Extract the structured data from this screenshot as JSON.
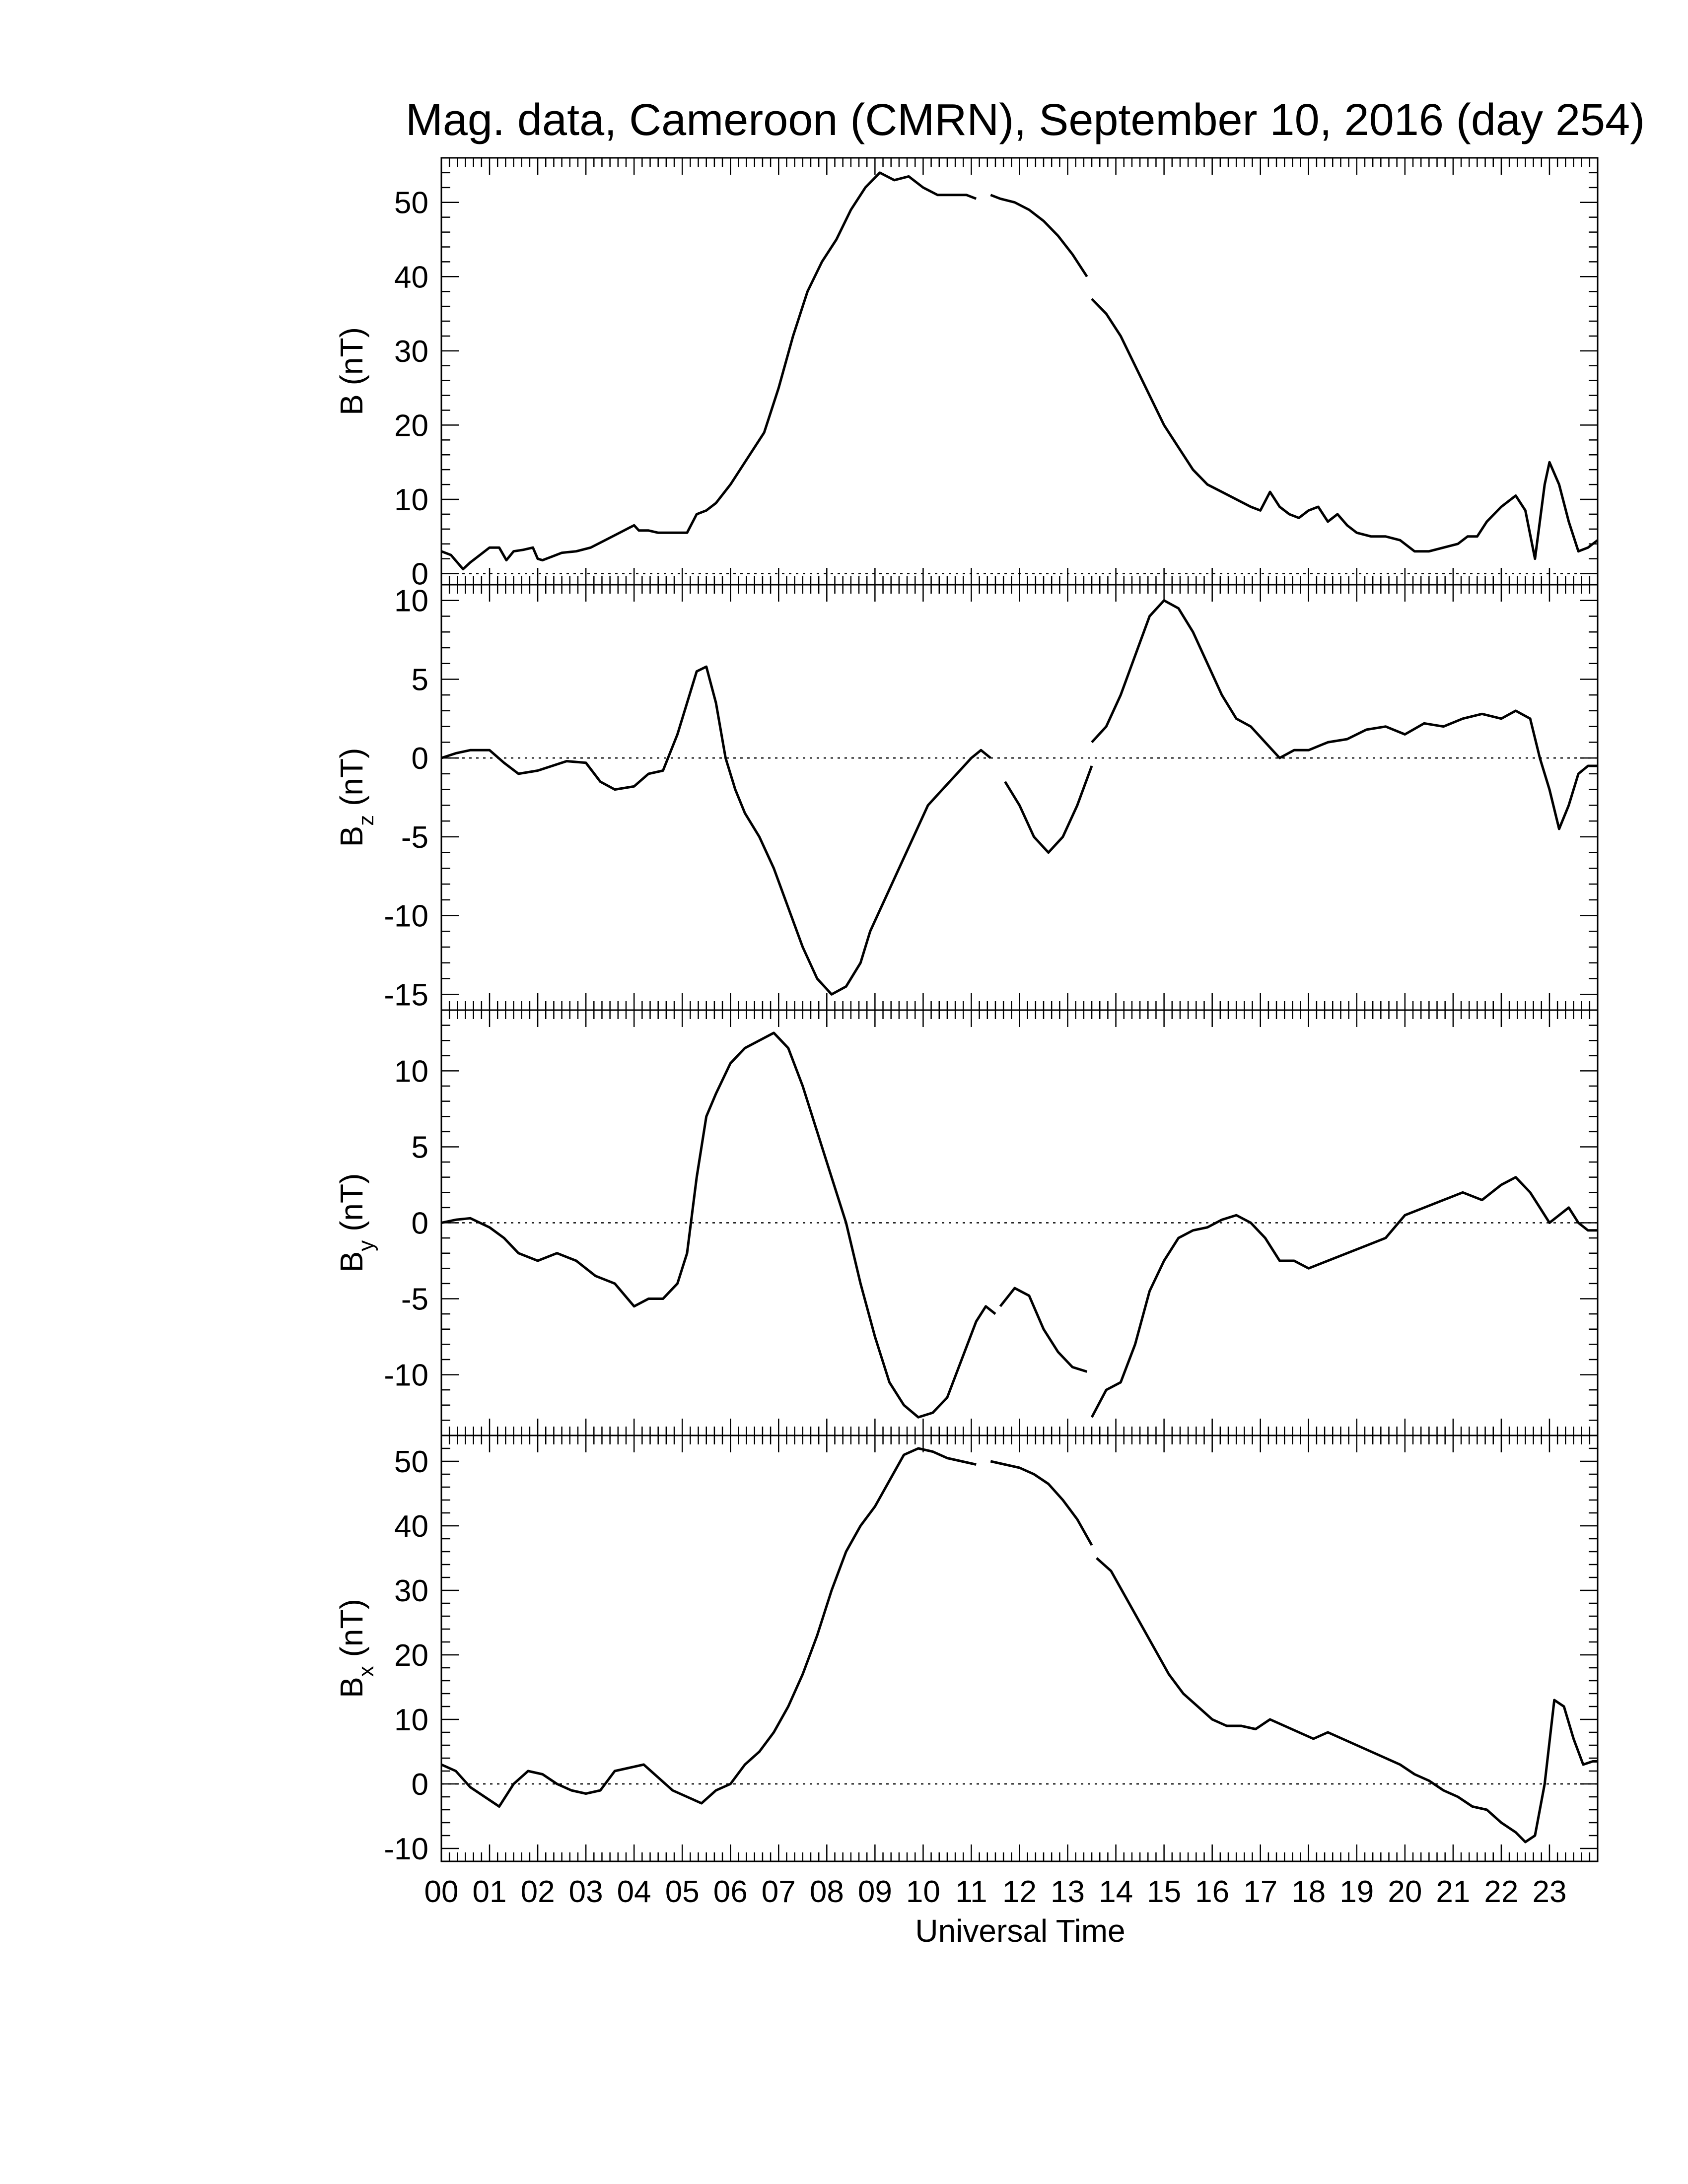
{
  "chart_data": {
    "title": "Mag. data, Cameroon (CMRN), September 10, 2016 (day 254)",
    "xlabel": "Universal Time",
    "x_ticks": [
      "00",
      "01",
      "02",
      "03",
      "04",
      "05",
      "06",
      "07",
      "08",
      "09",
      "10",
      "11",
      "12",
      "13",
      "14",
      "15",
      "16",
      "17",
      "18",
      "19",
      "20",
      "21",
      "22",
      "23"
    ],
    "xlim": [
      0,
      24
    ],
    "zero_line": "dotted",
    "panels": [
      {
        "type": "line",
        "ylabel_main": "B",
        "ylabel_sub": "",
        "ylabel_unit": " (nT)",
        "ylim": [
          -1.5,
          56
        ],
        "yticks": [
          0,
          10,
          20,
          30,
          40,
          50
        ],
        "series": [
          {
            "x": [
              0,
              0.2,
              0.45,
              0.6,
              0.8,
              1,
              1.2,
              1.35,
              1.5,
              1.7,
              1.9,
              2.0,
              2.1,
              2.3,
              2.5,
              2.8,
              3.1,
              3.4,
              3.7,
              4.0,
              4.1,
              4.3,
              4.5,
              4.8,
              5.1,
              5.3,
              5.5,
              5.7,
              6.0,
              6.3,
              6.7,
              7.0,
              7.3,
              7.6,
              7.9,
              8.2,
              8.5,
              8.8,
              9.1,
              9.4,
              9.7,
              10.0,
              10.3,
              10.6,
              10.9,
              11.1
            ],
            "y": [
              3,
              2.5,
              0.6,
              1.5,
              2.5,
              3.5,
              3.5,
              1.8,
              3,
              3.2,
              3.5,
              2,
              1.8,
              2.3,
              2.8,
              3,
              3.5,
              4.5,
              5.5,
              6.5,
              5.8,
              5.8,
              5.5,
              5.5,
              5.5,
              8,
              8.5,
              9.5,
              12,
              15,
              19,
              25,
              32,
              38,
              42,
              45,
              49,
              52,
              54,
              53,
              53.5,
              52,
              51,
              51,
              51,
              50.5
            ]
          },
          {
            "x": [
              11.4,
              11.6,
              11.9,
              12.2,
              12.5,
              12.8,
              13.1,
              13.4
            ],
            "y": [
              51,
              50.5,
              50,
              49,
              47.5,
              45.5,
              43,
              40
            ]
          },
          {
            "x": [
              13.5,
              13.8,
              14.1,
              14.4,
              14.7,
              15.0,
              15.3,
              15.6,
              15.9,
              16.2,
              16.5,
              16.8,
              17.0,
              17.2,
              17.4,
              17.6,
              17.8,
              18.0,
              18.2,
              18.4,
              18.6,
              18.8,
              19.0,
              19.3,
              19.6,
              19.9,
              20.2,
              20.5,
              20.8,
              21.1,
              21.3,
              21.5,
              21.7,
              22.0,
              22.3,
              22.5,
              22.7,
              22.9,
              23.0,
              23.2,
              23.4,
              23.6,
              23.8,
              24.0
            ],
            "y": [
              37,
              35,
              32,
              28,
              24,
              20,
              17,
              14,
              12,
              11,
              10,
              9,
              8.5,
              11,
              9,
              8,
              7.5,
              8.5,
              9,
              7,
              8,
              6.5,
              5.5,
              5,
              5,
              4.5,
              3,
              3,
              3.5,
              4,
              5,
              5,
              7,
              9,
              10.5,
              8.5,
              2,
              12,
              15,
              12,
              7,
              3,
              3.5,
              4.5
            ]
          }
        ]
      },
      {
        "type": "line",
        "ylabel_main": "B",
        "ylabel_sub": "z",
        "ylabel_unit": " (nT)",
        "ylim": [
          -16,
          11
        ],
        "yticks": [
          -15,
          -10,
          -5,
          0,
          5,
          10
        ],
        "series": [
          {
            "x": [
              0,
              0.3,
              0.6,
              1,
              1.3,
              1.6,
              2.0,
              2.3,
              2.6,
              3.0,
              3.3,
              3.6,
              4.0,
              4.3,
              4.6,
              4.9,
              5.1,
              5.3,
              5.5,
              5.7,
              5.9,
              6.1,
              6.3,
              6.6,
              6.9,
              7.2,
              7.5,
              7.8,
              8.1,
              8.4,
              8.7,
              8.9,
              9.2,
              9.5,
              9.8,
              10.1,
              10.4,
              10.7,
              11.0,
              11.2,
              11.4
            ],
            "y": [
              0,
              0.3,
              0.5,
              0.5,
              -0.3,
              -1,
              -0.8,
              -0.5,
              -0.2,
              -0.3,
              -1.5,
              -2,
              -1.8,
              -1,
              -0.8,
              1.5,
              3.5,
              5.5,
              5.8,
              3.5,
              0,
              -2,
              -3.5,
              -5,
              -7,
              -9.5,
              -12,
              -14,
              -15,
              -14.5,
              -13,
              -11,
              -9,
              -7,
              -5,
              -3,
              -2,
              -1,
              0,
              0.5,
              0
            ]
          },
          {
            "x": [
              11.7,
              12.0,
              12.3,
              12.6,
              12.9,
              13.2,
              13.5
            ],
            "y": [
              -1.5,
              -3,
              -5,
              -6,
              -5,
              -3,
              -0.5
            ]
          },
          {
            "x": [
              13.5,
              13.8,
              14.1,
              14.4,
              14.7,
              15.0,
              15.3,
              15.6,
              15.9,
              16.2,
              16.5,
              16.8,
              17.1,
              17.4,
              17.7,
              18.0,
              18.4,
              18.8,
              19.2,
              19.6,
              20.0,
              20.4,
              20.8,
              21.2,
              21.6,
              22.0,
              22.3,
              22.6,
              22.8,
              23.0,
              23.2,
              23.4,
              23.6,
              23.8,
              24.0
            ],
            "y": [
              1,
              2,
              4,
              6.5,
              9,
              10,
              9.5,
              8,
              6,
              4,
              2.5,
              2,
              1,
              0,
              0.5,
              0.5,
              1,
              1.2,
              1.8,
              2,
              1.5,
              2.2,
              2,
              2.5,
              2.8,
              2.5,
              3,
              2.5,
              0,
              -2,
              -4.5,
              -3,
              -1,
              -0.5,
              -0.5
            ]
          }
        ]
      },
      {
        "type": "line",
        "ylabel_main": "B",
        "ylabel_sub": "y",
        "ylabel_unit": " (nT)",
        "ylim": [
          -14,
          14
        ],
        "yticks": [
          -10,
          -5,
          0,
          5,
          10
        ],
        "series": [
          {
            "x": [
              0,
              0.3,
              0.6,
              1,
              1.3,
              1.6,
              2.0,
              2.4,
              2.8,
              3.2,
              3.6,
              4.0,
              4.3,
              4.6,
              4.9,
              5.1,
              5.3,
              5.5,
              5.7,
              6.0,
              6.3,
              6.6,
              6.9,
              7.2,
              7.5,
              7.8,
              8.1,
              8.4,
              8.7,
              9.0,
              9.3,
              9.6,
              9.9,
              10.2,
              10.5,
              10.8,
              11.1,
              11.3,
              11.5
            ],
            "y": [
              0,
              0.2,
              0.3,
              -0.3,
              -1,
              -2,
              -2.5,
              -2,
              -2.5,
              -3.5,
              -4,
              -5.5,
              -5,
              -5,
              -4,
              -2,
              3,
              7,
              8.5,
              10.5,
              11.5,
              12,
              12.5,
              11.5,
              9,
              6,
              3,
              0,
              -4,
              -7.5,
              -10.5,
              -12,
              -12.8,
              -12.5,
              -11.5,
              -9,
              -6.5,
              -5.5,
              -6
            ]
          },
          {
            "x": [
              11.6,
              11.9,
              12.2,
              12.5,
              12.8,
              13.1,
              13.4
            ],
            "y": [
              -5.5,
              -4.3,
              -4.8,
              -7,
              -8.5,
              -9.5,
              -9.8
            ]
          },
          {
            "x": [
              13.5,
              13.8,
              14.1,
              14.4,
              14.7,
              15.0,
              15.3,
              15.6,
              15.9,
              16.2,
              16.5,
              16.8,
              17.1,
              17.4,
              17.7,
              18.0,
              18.4,
              18.8,
              19.2,
              19.6,
              20.0,
              20.4,
              20.8,
              21.2,
              21.6,
              22.0,
              22.3,
              22.6,
              22.8,
              23.0,
              23.2,
              23.4,
              23.6,
              23.8,
              24.0
            ],
            "y": [
              -12.8,
              -11,
              -10.5,
              -8,
              -4.5,
              -2.5,
              -1,
              -0.5,
              -0.3,
              0.2,
              0.5,
              0,
              -1,
              -2.5,
              -2.5,
              -3,
              -2.5,
              -2,
              -1.5,
              -1,
              0.5,
              1,
              1.5,
              2,
              1.5,
              2.5,
              3,
              2,
              1,
              0,
              0.5,
              1,
              0,
              -0.5,
              -0.5
            ]
          }
        ]
      },
      {
        "type": "line",
        "ylabel_main": "B",
        "ylabel_sub": "x",
        "ylabel_unit": " (nT)",
        "ylim": [
          -12,
          54
        ],
        "yticks": [
          -10,
          0,
          10,
          20,
          30,
          40,
          50
        ],
        "series": [
          {
            "x": [
              0,
              0.3,
              0.6,
              0.9,
              1.2,
              1.5,
              1.8,
              2.1,
              2.4,
              2.7,
              3.0,
              3.3,
              3.6,
              3.9,
              4.2,
              4.5,
              4.8,
              5.1,
              5.4,
              5.7,
              6.0,
              6.3,
              6.6,
              6.9,
              7.2,
              7.5,
              7.8,
              8.1,
              8.4,
              8.7,
              9.0,
              9.3,
              9.6,
              9.9,
              10.2,
              10.5,
              10.8,
              11.1
            ],
            "y": [
              3,
              2,
              -0.5,
              -2,
              -3.5,
              0,
              2,
              1.5,
              0,
              -1,
              -1.5,
              -1,
              2,
              2.5,
              3,
              1,
              -1,
              -2,
              -3,
              -1,
              0,
              3,
              5,
              8,
              12,
              17,
              23,
              30,
              36,
              40,
              43,
              47,
              51,
              52,
              51.5,
              50.5,
              50,
              49.5
            ]
          },
          {
            "x": [
              11.4,
              11.7,
              12.0,
              12.3,
              12.6,
              12.9,
              13.2,
              13.5
            ],
            "y": [
              50,
              49.5,
              49,
              48,
              46.5,
              44,
              41,
              37
            ]
          },
          {
            "x": [
              13.6,
              13.9,
              14.2,
              14.5,
              14.8,
              15.1,
              15.4,
              15.7,
              16.0,
              16.3,
              16.6,
              16.9,
              17.2,
              17.5,
              17.8,
              18.1,
              18.4,
              18.7,
              19.0,
              19.3,
              19.6,
              19.9,
              20.2,
              20.5,
              20.8,
              21.1,
              21.4,
              21.7,
              22.0,
              22.3,
              22.5,
              22.7,
              22.9,
              23.1,
              23.3,
              23.5,
              23.7,
              23.9,
              24.0
            ],
            "y": [
              35,
              33,
              29,
              25,
              21,
              17,
              14,
              12,
              10,
              9,
              9,
              8.5,
              10,
              9,
              8,
              7,
              8,
              7,
              6,
              5,
              4,
              3,
              1.5,
              0.5,
              -1,
              -2,
              -3.5,
              -4,
              -6,
              -7.5,
              -9,
              -8,
              0,
              13,
              12,
              7,
              3,
              3.5,
              3.5
            ]
          }
        ]
      }
    ]
  }
}
